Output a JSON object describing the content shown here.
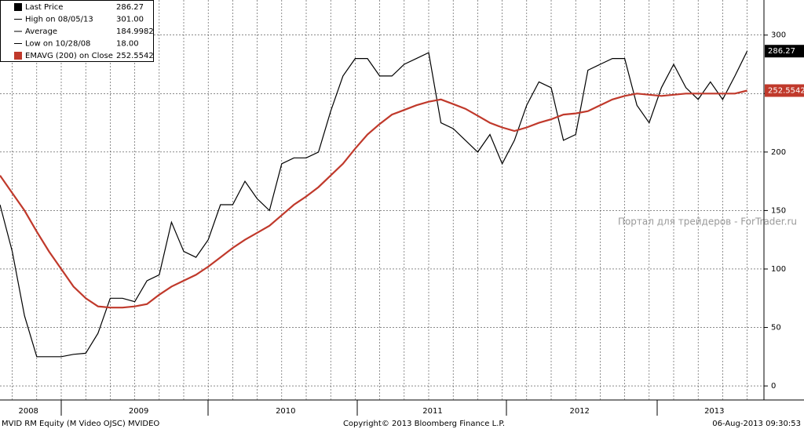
{
  "chart_data": {
    "type": "line",
    "categories": [
      null,
      null,
      "2008",
      null,
      null,
      null,
      null,
      null,
      null,
      null,
      null,
      "2009",
      null,
      null,
      null,
      null,
      null,
      null,
      null,
      null,
      null,
      null,
      null,
      "2010",
      null,
      null,
      null,
      null,
      null,
      null,
      null,
      null,
      null,
      null,
      null,
      "2011",
      null,
      null,
      null,
      null,
      null,
      null,
      null,
      null,
      null,
      null,
      null,
      "2012",
      null,
      null,
      null,
      null,
      null,
      null,
      null,
      null,
      null,
      null,
      "2013",
      null,
      null,
      null
    ],
    "series": [
      {
        "name": "Last Price",
        "color": "#000000",
        "values": [
          155,
          115,
          60,
          25,
          25,
          25,
          27,
          28,
          45,
          75,
          75,
          72,
          90,
          95,
          140,
          115,
          110,
          125,
          155,
          155,
          175,
          160,
          150,
          190,
          195,
          195,
          200,
          235,
          265,
          280,
          280,
          265,
          265,
          275,
          280,
          285,
          225,
          220,
          210,
          200,
          215,
          190,
          210,
          240,
          260,
          255,
          210,
          215,
          270,
          275,
          280,
          280,
          240,
          225,
          255,
          275,
          255,
          245,
          260,
          245,
          265,
          286.27
        ]
      },
      {
        "name": "EMAVG (200) on Close",
        "color": "#c0392b",
        "values": [
          180,
          165,
          150,
          132,
          115,
          100,
          85,
          75,
          68,
          67,
          67,
          68,
          70,
          78,
          85,
          90,
          95,
          102,
          110,
          118,
          125,
          131,
          137,
          146,
          155,
          162,
          170,
          180,
          190,
          203,
          215,
          224,
          232,
          236,
          240,
          243,
          245,
          241,
          237,
          231,
          225,
          221,
          218,
          221,
          225,
          228,
          232,
          233,
          235,
          240,
          245,
          248,
          250,
          249,
          248,
          249,
          250,
          250,
          250,
          250,
          250,
          252.5542
        ]
      }
    ],
    "legend": [
      {
        "label": "Last Price",
        "value": "286.27"
      },
      {
        "label": "High on 08/05/13",
        "value": "301.00"
      },
      {
        "label": "Average",
        "value": "184.9982"
      },
      {
        "label": "Low on 10/28/08",
        "value": "18.00"
      },
      {
        "label": "EMAVG (200) on Close",
        "value": "252.5542"
      }
    ],
    "last_tags": [
      "286.27",
      "252.5542"
    ],
    "ylim": [
      -12,
      330
    ],
    "yticks": [
      0,
      50,
      100,
      150,
      200,
      250,
      300
    ],
    "grid": true,
    "watermark": "Портал для трейдеров - ForTrader.ru",
    "footer": {
      "left": "MVID RM Equity (M Video OJSC) MVIDEO",
      "center": "Copyright© 2013 Bloomberg Finance L.P.",
      "right": "06-Aug-2013 09:30:53"
    }
  }
}
